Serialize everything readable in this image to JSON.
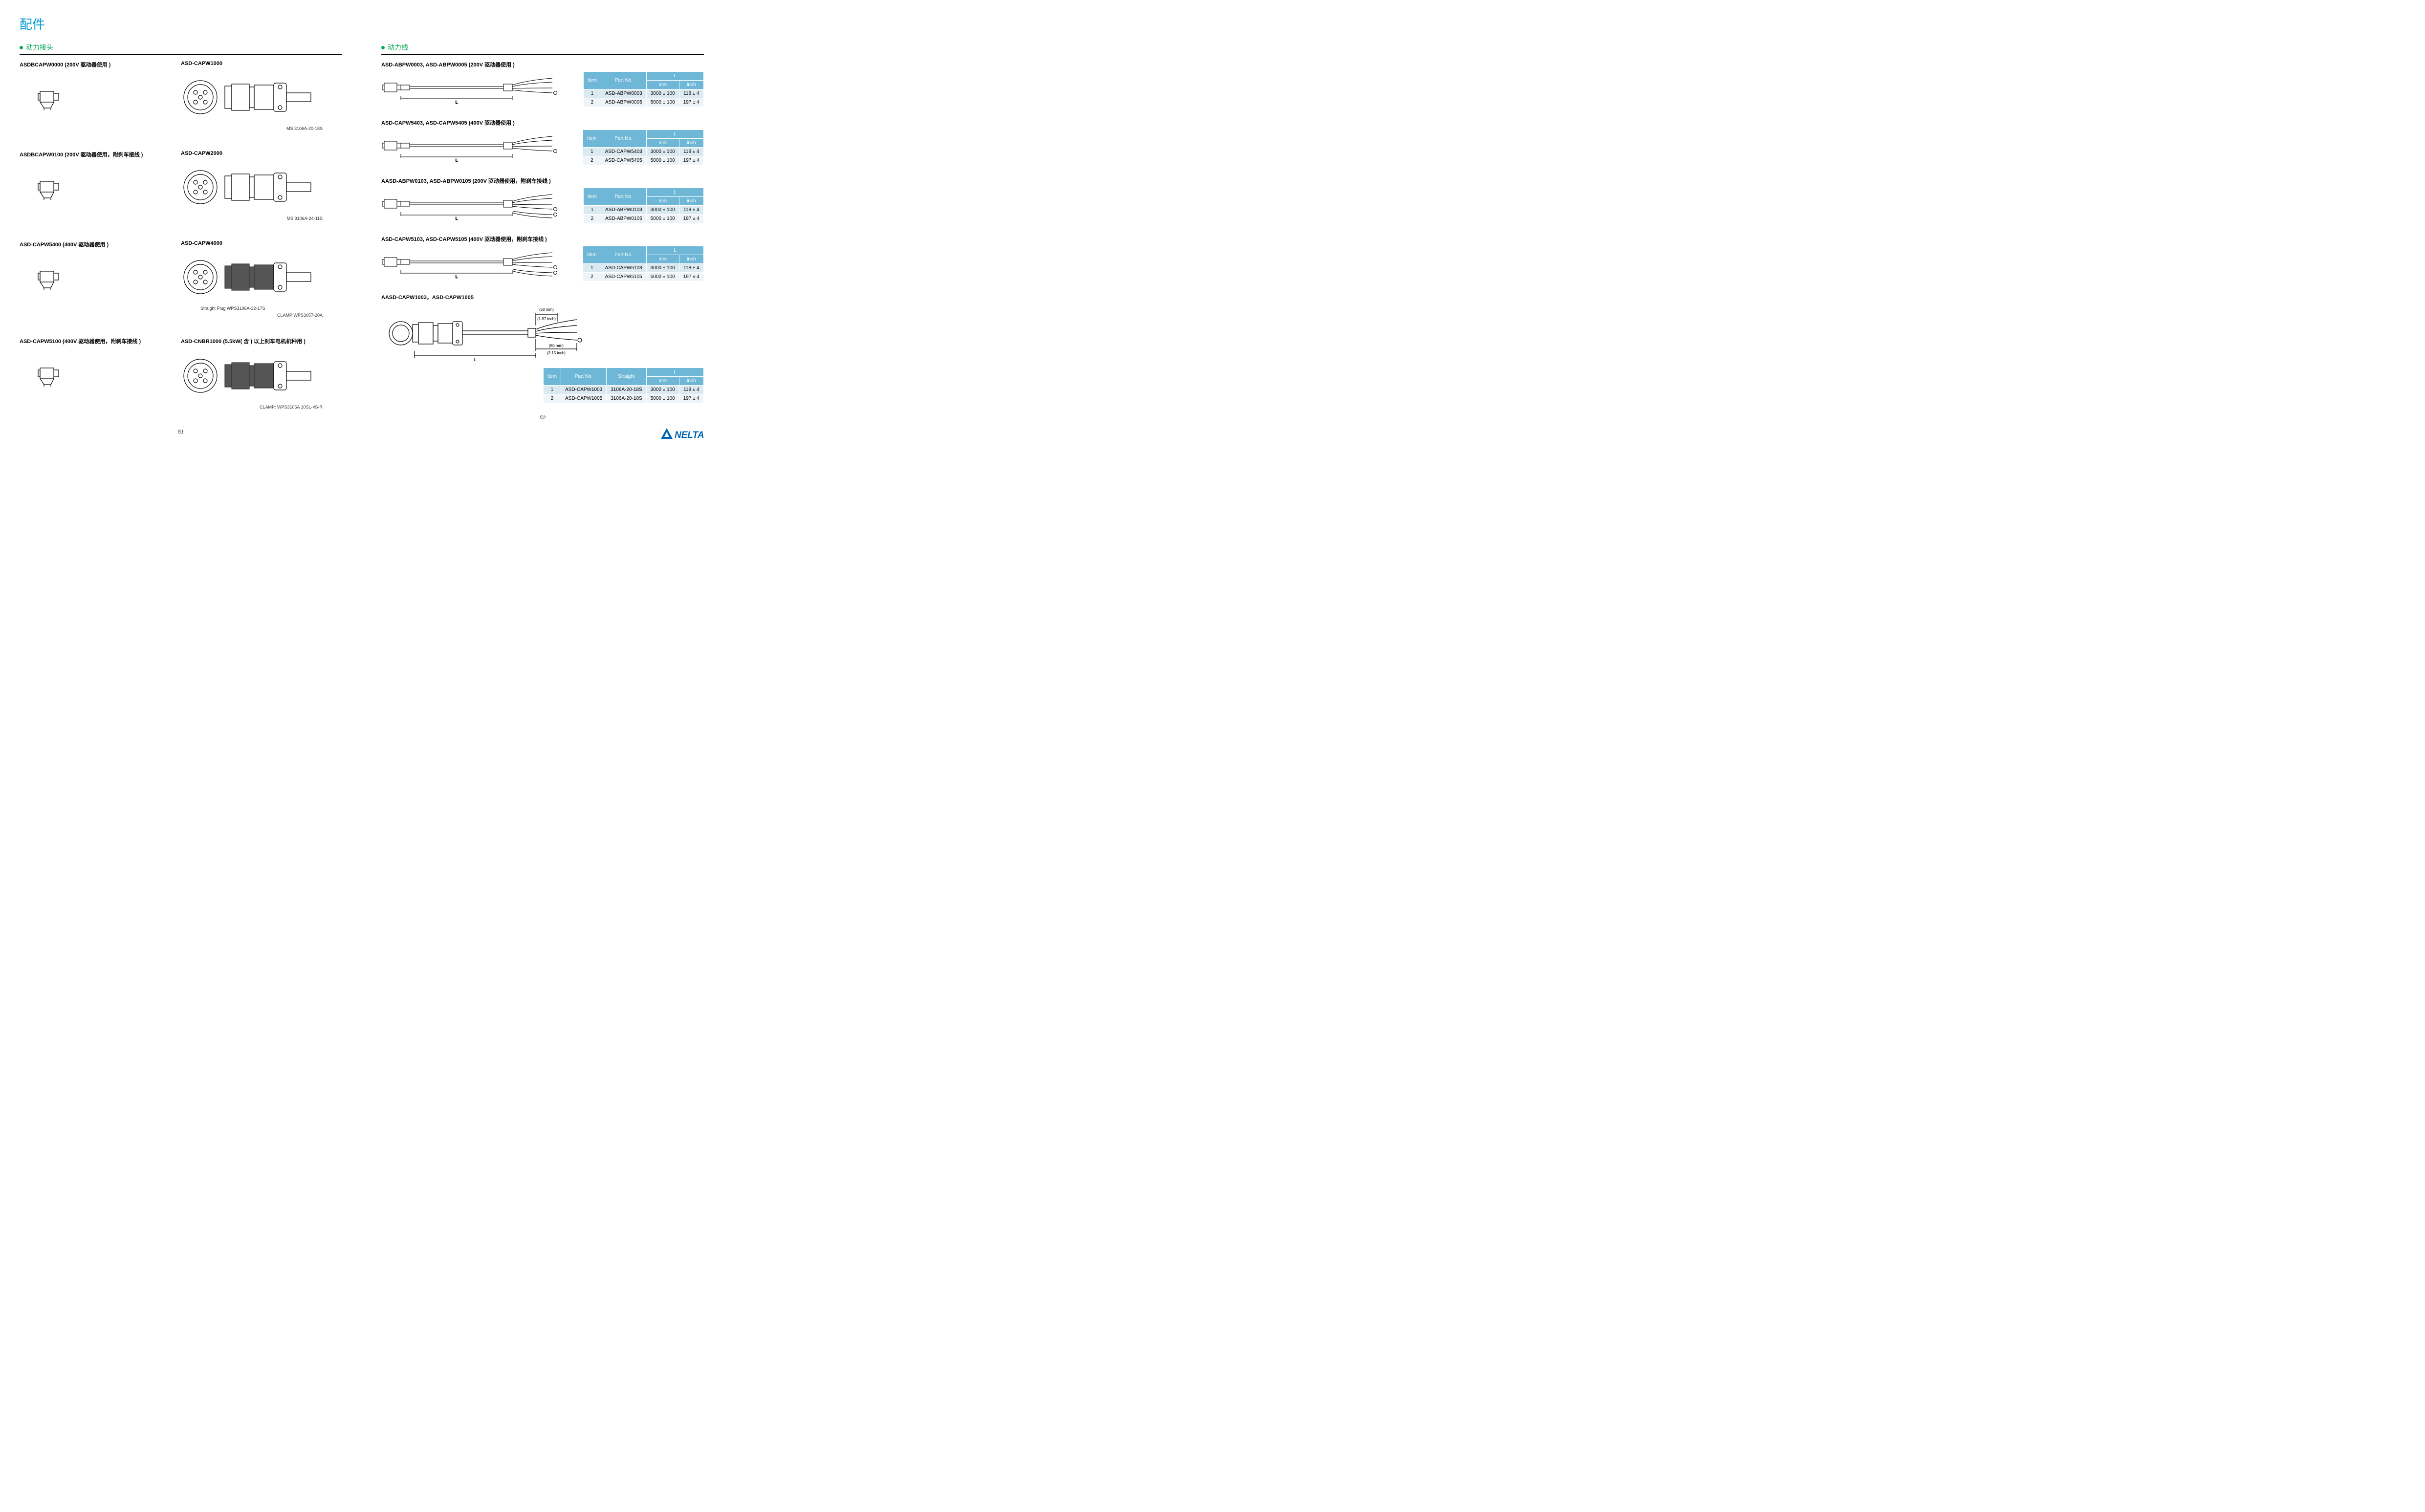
{
  "page_title": "配件",
  "left": {
    "section_title": "动力接头",
    "rows": [
      {
        "left_label": "ASDBCAPW0000 (200V 驱动器使用 )",
        "right_label": "ASD-CAPW1000",
        "right_caption": "MS 3106A-20-18S",
        "caption_note": ""
      },
      {
        "left_label": "ASDBCAPW0100 (200V 驱动器使用，附刹车接线 )",
        "right_label": "ASD-CAPW2000",
        "right_caption": "MS 3106A-24-11S",
        "caption_note": ""
      },
      {
        "left_label": "ASD-CAPW5400 (400V 驱动器使用 )",
        "right_label": "ASD-CAPW4000",
        "right_caption": "CLAMP:WPS3057-20A",
        "caption_note": "Straight Plug WPS3106A-32-17S"
      },
      {
        "left_label": "ASD-CAPW5100 (400V 驱动器使用，附刹车接线 )",
        "right_label": "ASD-CNBR1000 (5.5kW( 含 ) 以上刹车电机机种用 )",
        "right_caption": "CLAMP: WPS3106A 10SL-4S-R",
        "caption_note": ""
      }
    ],
    "page_num": "51"
  },
  "right": {
    "section_title": "动力线",
    "tables": [
      {
        "heading": "ASD-ABPW0003, ASD-ABPW0005 (200V 驱动器使用 )",
        "cols": [
          "Item",
          "Part No.",
          "mm",
          "inch"
        ],
        "L_label": "L",
        "rows": [
          {
            "item": "1",
            "part": "ASD-ABPW0003",
            "mm": "3000 ± 100",
            "inch": "118 ± 4"
          },
          {
            "item": "2",
            "part": "ASD-ABPW0005",
            "mm": "5000 ± 100",
            "inch": "197 ± 4"
          }
        ],
        "brake": false
      },
      {
        "heading": "ASD-CAPW5403, ASD-CAPW5405 (400V 驱动器使用 )",
        "cols": [
          "Item",
          "Part No.",
          "mm",
          "inch"
        ],
        "L_label": "L",
        "rows": [
          {
            "item": "1",
            "part": "ASD-CAPW5403",
            "mm": "3000 ± 100",
            "inch": "118 ± 4"
          },
          {
            "item": "2",
            "part": "ASD-CAPW5405",
            "mm": "5000 ± 100",
            "inch": "197 ± 4"
          }
        ],
        "brake": false
      },
      {
        "heading": "AASD-ABPW0103, ASD-ABPW0105 (200V 驱动器使用，附刹车接线 )",
        "cols": [
          "Item",
          "Part No.",
          "mm",
          "inch"
        ],
        "L_label": "L",
        "rows": [
          {
            "item": "1",
            "part": "ASD-ABPW0103",
            "mm": "3000 ± 100",
            "inch": "118 ± 4"
          },
          {
            "item": "2",
            "part": "ASD-ABPW0105",
            "mm": "5000 ± 100",
            "inch": "197 ± 4"
          }
        ],
        "brake": true
      },
      {
        "heading": "ASD-CAPW5103, ASD-CAPW5105 (400V 驱动器使用，附刹车接线 )",
        "cols": [
          "Item",
          "Part No.",
          "mm",
          "inch"
        ],
        "L_label": "L",
        "rows": [
          {
            "item": "1",
            "part": "ASD-CAPW5103",
            "mm": "3000 ± 100",
            "inch": "118 ± 4"
          },
          {
            "item": "2",
            "part": "ASD-CAPW5105",
            "mm": "5000 ± 100",
            "inch": "197 ± 4"
          }
        ],
        "brake": true
      }
    ],
    "big_table": {
      "heading": "AASD-CAPW1003，ASD-CAPW1005",
      "dim50": "(50 mm)",
      "dim50i": "(1.97 inch)",
      "dim80": "(80 mm)",
      "dim80i": "(3.15 inch)",
      "L_label": "L",
      "cols": [
        "Item",
        "Part No.",
        "Straight",
        "mm",
        "inch"
      ],
      "rows": [
        {
          "item": "1",
          "part": "ASD-CAPW1003",
          "straight": "3106A-20-18S",
          "mm": "3000 ± 100",
          "inch": "118 ± 4"
        },
        {
          "item": "2",
          "part": "ASD-CAPW1005",
          "straight": "3106A-20-18S",
          "mm": "5000 ± 100",
          "inch": "197 ± 4"
        }
      ]
    },
    "page_num": "52"
  },
  "logo_text": "NELTA",
  "colors": {
    "header_bg": "#6fb7d6",
    "row_odd": "#dbe9f0",
    "row_even": "#eef4f8",
    "accent_green": "#00a651",
    "title_blue": "#0099cc",
    "logo_blue": "#0066b3"
  }
}
